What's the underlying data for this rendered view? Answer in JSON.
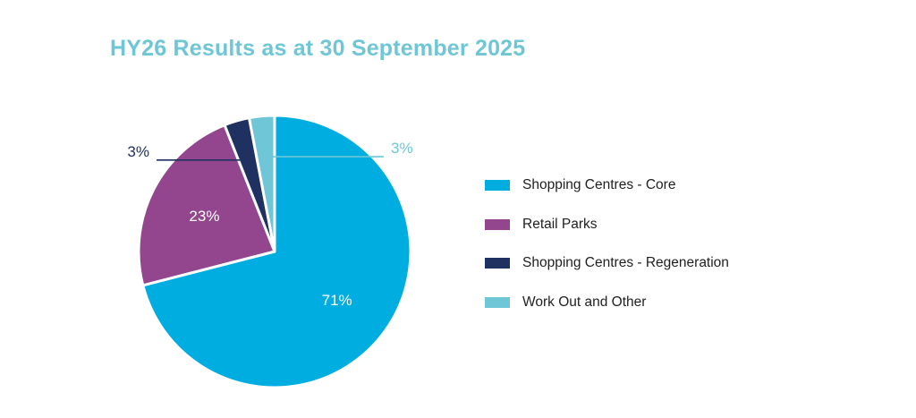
{
  "chart_data": {
    "type": "pie",
    "title": "HY26 Results as at 30 September 2025",
    "start_angle_deg": 0,
    "direction": "clockwise",
    "slices": [
      {
        "name": "Shopping Centres - Core",
        "value": 71,
        "label": "71%",
        "color": "#00ade0",
        "label_color": "#ffffff",
        "label_position": "inside"
      },
      {
        "name": "Retail Parks",
        "value": 23,
        "label": "23%",
        "color": "#93468d",
        "label_color": "#ffffff",
        "label_position": "inside"
      },
      {
        "name": "Shopping Centres - Regeneration",
        "value": 3,
        "label": "3%",
        "color": "#1e3160",
        "label_color": "#1e3160",
        "label_position": "outside-left"
      },
      {
        "name": "Work Out and Other",
        "value": 3,
        "label": "3%",
        "color": "#6ec6d6",
        "label_color": "#6ec6d6",
        "label_position": "outside-right"
      }
    ],
    "legend_position": "right"
  },
  "colors": {
    "title": "#6ec6d6",
    "slice_border": "#ffffff"
  }
}
